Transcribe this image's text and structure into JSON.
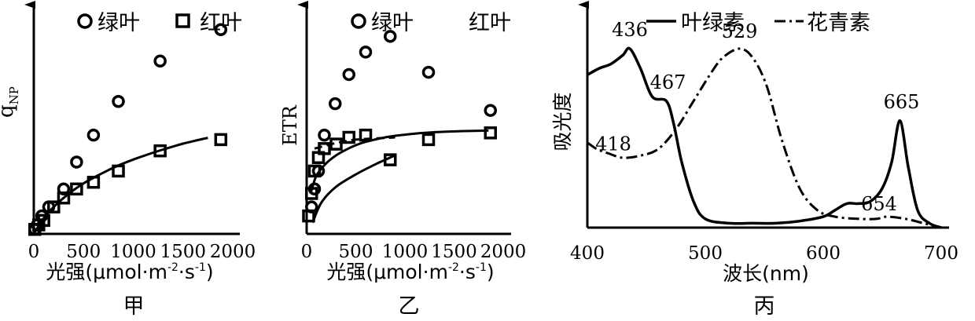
{
  "chart_data": [
    {
      "panel_id": "jia",
      "type": "scatter",
      "caption": "甲",
      "ylabel": "q",
      "ylabel_sub": "NP",
      "xlabel": "光强(μmol·m",
      "xlabel_sup1": "-2",
      "xlabel_mid": "·s",
      "xlabel_sup2": "-1",
      "xlabel_end": ")",
      "xlim": [
        0,
        2000
      ],
      "ylim": [
        0,
        100
      ],
      "xticks": [
        "0",
        "500",
        "1000",
        "1500",
        "2000"
      ],
      "xtick_values": [
        0,
        500,
        1000,
        1500,
        2000
      ],
      "legend": [
        {
          "marker": "circle",
          "label": "绿叶"
        },
        {
          "marker": "square",
          "label": "红叶"
        }
      ],
      "series": [
        {
          "name": "绿叶",
          "marker": "circle",
          "x": [
            10,
            35,
            80,
            150,
            300,
            430,
            600,
            850,
            1270,
            1880
          ],
          "y": [
            2,
            4,
            8,
            12,
            20,
            32,
            44,
            59,
            77,
            91
          ]
        },
        {
          "name": "红叶",
          "marker": "square",
          "x": [
            10,
            50,
            100,
            200,
            300,
            430,
            600,
            850,
            1270,
            1880
          ],
          "y": [
            2,
            4,
            6,
            12,
            16,
            20,
            23,
            28,
            37,
            42
          ]
        }
      ],
      "curves": [
        {
          "name": "fit",
          "style": "solid",
          "x": [
            0,
            100,
            200,
            300,
            400,
            500,
            600,
            700,
            800,
            900,
            1000,
            1100,
            1200,
            1300,
            1400,
            1500,
            1600,
            1700,
            1750
          ],
          "y": [
            0,
            7,
            12,
            16,
            19.5,
            22.5,
            25,
            27.3,
            29.5,
            31.4,
            33.1,
            34.7,
            36.2,
            37.6,
            38.9,
            40.2,
            41.3,
            42.3,
            42.8
          ]
        }
      ]
    },
    {
      "panel_id": "yi",
      "type": "scatter",
      "caption": "乙",
      "ylabel": "ETR",
      "xlabel": "光强(μmol·m",
      "xlabel_sup1": "-2",
      "xlabel_mid": "·s",
      "xlabel_sup2": "-1",
      "xlabel_end": ")",
      "xlim": [
        0,
        2000
      ],
      "ylim": [
        0,
        100
      ],
      "xticks": [
        "0",
        "500",
        "1000",
        "1500",
        "2000"
      ],
      "xtick_values": [
        0,
        500,
        1000,
        1500,
        2000
      ],
      "legend": [
        {
          "marker": "circle",
          "label": "绿叶"
        },
        {
          "marker": "none",
          "label": "红叶"
        }
      ],
      "series": [
        {
          "name": "绿叶",
          "marker": "circle",
          "x": [
            50,
            80,
            120,
            180,
            290,
            430,
            600,
            850,
            1240,
            1870
          ],
          "y": [
            12,
            20,
            28,
            44,
            58,
            71,
            81,
            88,
            72,
            55
          ]
        },
        {
          "name": "红叶",
          "marker": "square",
          "x": [
            20,
            50,
            80,
            120,
            180,
            300,
            430,
            600,
            850,
            1240,
            1870
          ],
          "y": [
            8,
            18,
            28,
            34,
            38,
            40,
            43,
            44,
            33,
            42,
            45
          ]
        }
      ],
      "curves": [
        {
          "name": "fit-red-leaf",
          "style": "solid",
          "x": [
            40,
            100,
            200,
            300,
            400,
            500,
            600,
            800,
            1000,
            1200,
            1400,
            1600,
            1850
          ],
          "y": [
            18,
            26,
            31.5,
            35,
            37.5,
            39.5,
            41,
            43,
            44.2,
            45,
            45.5,
            45.8,
            46
          ]
        },
        {
          "name": "fit-lower",
          "style": "solid",
          "x": [
            60,
            150,
            300,
            500,
            700,
            850,
            900
          ],
          "y": [
            5,
            14,
            21,
            26.5,
            31,
            34,
            35
          ]
        },
        {
          "name": "fit-dashed",
          "style": "dashed",
          "x": [
            80,
            300,
            500,
            700,
            900
          ],
          "y": [
            38,
            40.5,
            42,
            42.5,
            43
          ]
        }
      ]
    },
    {
      "panel_id": "bing",
      "type": "line",
      "caption": "丙",
      "ylabel": "吸光度",
      "xlabel": "波长(nm)",
      "xlim": [
        400,
        700
      ],
      "ylim": [
        0,
        100
      ],
      "xticks": [
        "400",
        "500",
        "600",
        "700"
      ],
      "xtick_values": [
        400,
        500,
        600,
        700
      ],
      "legend": [
        {
          "style": "solid",
          "label": "叶绿素"
        },
        {
          "style": "dashdot",
          "label": "花青素"
        }
      ],
      "series": [
        {
          "name": "叶绿素",
          "style": "solid",
          "x": [
            400,
            410,
            420,
            430,
            436,
            445,
            455,
            467,
            473,
            480,
            490,
            500,
            520,
            540,
            560,
            580,
            600,
            610,
            620,
            630,
            640,
            650,
            658,
            665,
            672,
            680,
            690,
            700
          ],
          "y": [
            70,
            73,
            75,
            79,
            82,
            73,
            60,
            58,
            48,
            30,
            12,
            4,
            2,
            2,
            2,
            3,
            5,
            8,
            11,
            11,
            12,
            18,
            30,
            49,
            28,
            8,
            2,
            0
          ]
        },
        {
          "name": "花青素",
          "style": "dashdot",
          "x": [
            400,
            408,
            418,
            430,
            445,
            460,
            475,
            490,
            505,
            515,
            529,
            540,
            552,
            565,
            580,
            595,
            610,
            630,
            645,
            654,
            670,
            685,
            700
          ],
          "y": [
            39,
            36,
            34,
            32,
            33,
            36,
            45,
            58,
            71,
            78,
            82,
            78,
            65,
            40,
            18,
            8,
            5,
            4,
            4,
            5,
            4,
            2,
            0
          ]
        }
      ],
      "annotations": [
        {
          "text": "436",
          "x": 436,
          "y": 82
        },
        {
          "text": "467",
          "x": 467,
          "y": 58
        },
        {
          "text": "529",
          "x": 529,
          "y": 82
        },
        {
          "text": "418",
          "x": 418,
          "y": 34
        },
        {
          "text": "665",
          "x": 665,
          "y": 49
        },
        {
          "text": "654",
          "x": 654,
          "y": 5
        }
      ]
    }
  ]
}
